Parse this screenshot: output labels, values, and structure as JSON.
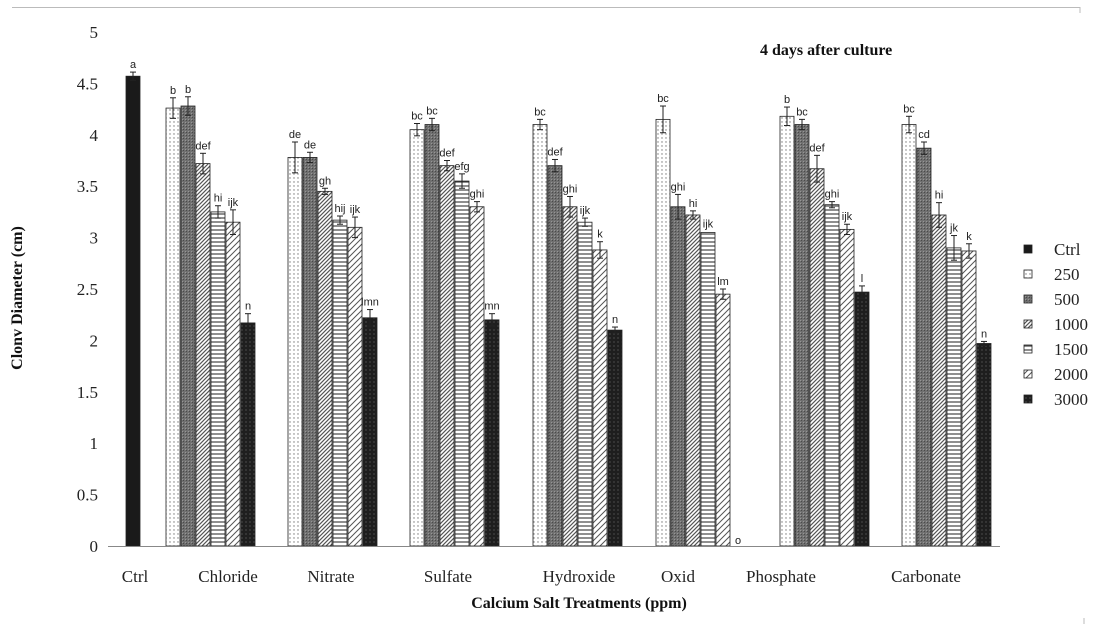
{
  "chart_data": {
    "type": "bar",
    "annotation": "4 days after culture",
    "xlabel": "Calcium Salt Treatments (ppm)",
    "ylabel": "Clonv Diameter (cm)",
    "ylim": [
      0,
      5
    ],
    "yticks": [
      "0",
      "0.5",
      "1",
      "1.5",
      "2",
      "2.5",
      "3",
      "3.5",
      "4",
      "4.5",
      "5"
    ],
    "legend_position": "right",
    "grid": false,
    "series": [
      {
        "name": "Ctrl",
        "pattern": "solid-black"
      },
      {
        "name": "250",
        "pattern": "dots"
      },
      {
        "name": "500",
        "pattern": "dark-grey"
      },
      {
        "name": "1000",
        "pattern": "diagonal-dense"
      },
      {
        "name": "1500",
        "pattern": "horizontal"
      },
      {
        "name": "2000",
        "pattern": "diagonal"
      },
      {
        "name": "3000",
        "pattern": "black-dots"
      }
    ],
    "groups": [
      {
        "category": "Ctrl",
        "bars": [
          {
            "series": "Ctrl",
            "value": 4.57,
            "error": 0.04,
            "label": "a"
          }
        ]
      },
      {
        "category": "Chloride",
        "bars": [
          {
            "series": "250",
            "value": 4.26,
            "error": 0.1,
            "label": "b"
          },
          {
            "series": "500",
            "value": 4.28,
            "error": 0.09,
            "label": "b"
          },
          {
            "series": "1000",
            "value": 3.72,
            "error": 0.1,
            "label": "def"
          },
          {
            "series": "1500",
            "value": 3.25,
            "error": 0.06,
            "label": "hi"
          },
          {
            "series": "2000",
            "value": 3.15,
            "error": 0.12,
            "label": "ijk"
          },
          {
            "series": "3000",
            "value": 2.17,
            "error": 0.09,
            "label": "n"
          }
        ]
      },
      {
        "category": "Nitrate",
        "bars": [
          {
            "series": "250",
            "value": 3.78,
            "error": 0.15,
            "label": "de"
          },
          {
            "series": "500",
            "value": 3.78,
            "error": 0.05,
            "label": "de"
          },
          {
            "series": "1000",
            "value": 3.45,
            "error": 0.03,
            "label": "gh"
          },
          {
            "series": "1500",
            "value": 3.17,
            "error": 0.04,
            "label": "hij"
          },
          {
            "series": "2000",
            "value": 3.1,
            "error": 0.1,
            "label": "ijk"
          },
          {
            "series": "3000",
            "value": 2.22,
            "error": 0.08,
            "label": "lmn"
          }
        ]
      },
      {
        "category": "Sulfate",
        "bars": [
          {
            "series": "250",
            "value": 4.05,
            "error": 0.06,
            "label": "bc"
          },
          {
            "series": "500",
            "value": 4.1,
            "error": 0.06,
            "label": "bc"
          },
          {
            "series": "1000",
            "value": 3.7,
            "error": 0.05,
            "label": "def"
          },
          {
            "series": "1500",
            "value": 3.55,
            "error": 0.07,
            "label": "efg"
          },
          {
            "series": "2000",
            "value": 3.3,
            "error": 0.05,
            "label": "ghi"
          },
          {
            "series": "3000",
            "value": 2.2,
            "error": 0.06,
            "label": "mn"
          }
        ]
      },
      {
        "category": "Hydroxide",
        "bars": [
          {
            "series": "250",
            "value": 4.1,
            "error": 0.05,
            "label": "bc"
          },
          {
            "series": "500",
            "value": 3.7,
            "error": 0.06,
            "label": "def"
          },
          {
            "series": "1000",
            "value": 3.3,
            "error": 0.1,
            "label": "ghi"
          },
          {
            "series": "1500",
            "value": 3.15,
            "error": 0.04,
            "label": "ijk"
          },
          {
            "series": "2000",
            "value": 2.88,
            "error": 0.08,
            "label": "k"
          },
          {
            "series": "3000",
            "value": 2.1,
            "error": 0.03,
            "label": "n"
          }
        ]
      },
      {
        "category": "Oxid",
        "bars": [
          {
            "series": "250",
            "value": 4.15,
            "error": 0.13,
            "label": "bc"
          },
          {
            "series": "500",
            "value": 3.3,
            "error": 0.12,
            "label": "ghi"
          },
          {
            "series": "1000",
            "value": 3.22,
            "error": 0.04,
            "label": "hi"
          },
          {
            "series": "1500",
            "value": 3.05,
            "error": 0,
            "label": "ijk"
          },
          {
            "series": "2000",
            "value": 2.45,
            "error": 0.05,
            "label": "lm"
          },
          {
            "series": "3000",
            "value": 0,
            "error": 0,
            "label": "o"
          }
        ]
      },
      {
        "category": "Phosphate",
        "bars": [
          {
            "series": "250",
            "value": 4.18,
            "error": 0.09,
            "label": "b"
          },
          {
            "series": "500",
            "value": 4.1,
            "error": 0.05,
            "label": "bc"
          },
          {
            "series": "1000",
            "value": 3.67,
            "error": 0.13,
            "label": "def"
          },
          {
            "series": "1500",
            "value": 3.32,
            "error": 0.03,
            "label": "ghi"
          },
          {
            "series": "2000",
            "value": 3.08,
            "error": 0.05,
            "label": "ijk"
          },
          {
            "series": "3000",
            "value": 2.47,
            "error": 0.06,
            "label": "l"
          }
        ]
      },
      {
        "category": "Carbonate",
        "bars": [
          {
            "series": "250",
            "value": 4.1,
            "error": 0.08,
            "label": "bc"
          },
          {
            "series": "500",
            "value": 3.87,
            "error": 0.06,
            "label": "cd"
          },
          {
            "series": "1000",
            "value": 3.22,
            "error": 0.12,
            "label": "hi"
          },
          {
            "series": "1500",
            "value": 2.9,
            "error": 0.12,
            "label": "jk"
          },
          {
            "series": "2000",
            "value": 2.87,
            "error": 0.07,
            "label": "k"
          },
          {
            "series": "3000",
            "value": 1.97,
            "error": 0.02,
            "label": "n"
          }
        ]
      }
    ]
  }
}
